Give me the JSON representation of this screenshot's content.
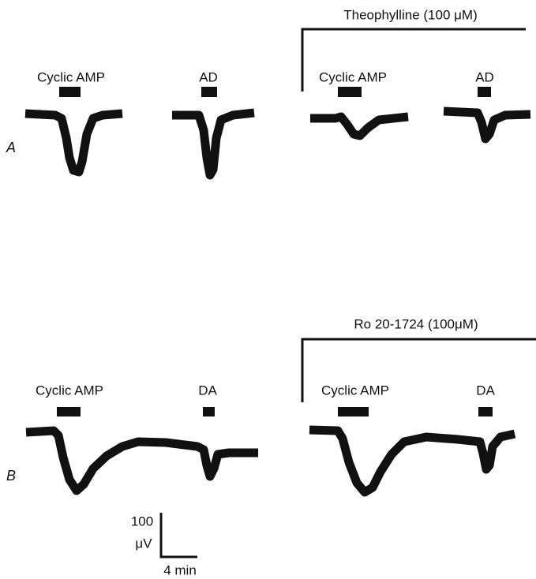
{
  "panels": [
    {
      "label": "A",
      "treatment": "Theophylline (100 μM)",
      "responses": [
        {
          "label": "Cyclic AMP"
        },
        {
          "label": "AD"
        },
        {
          "label": "Cyclic AMP"
        },
        {
          "label": "AD"
        }
      ]
    },
    {
      "label": "B",
      "treatment": "Ro 20-1724 (100μM)",
      "responses": [
        {
          "label": "Cyclic AMP"
        },
        {
          "label": "DA"
        },
        {
          "label": "Cyclic AMP"
        },
        {
          "label": "DA"
        }
      ]
    }
  ],
  "scale_bar": {
    "amplitude": "100",
    "amplitude_unit": "μV",
    "time": "4 min"
  }
}
